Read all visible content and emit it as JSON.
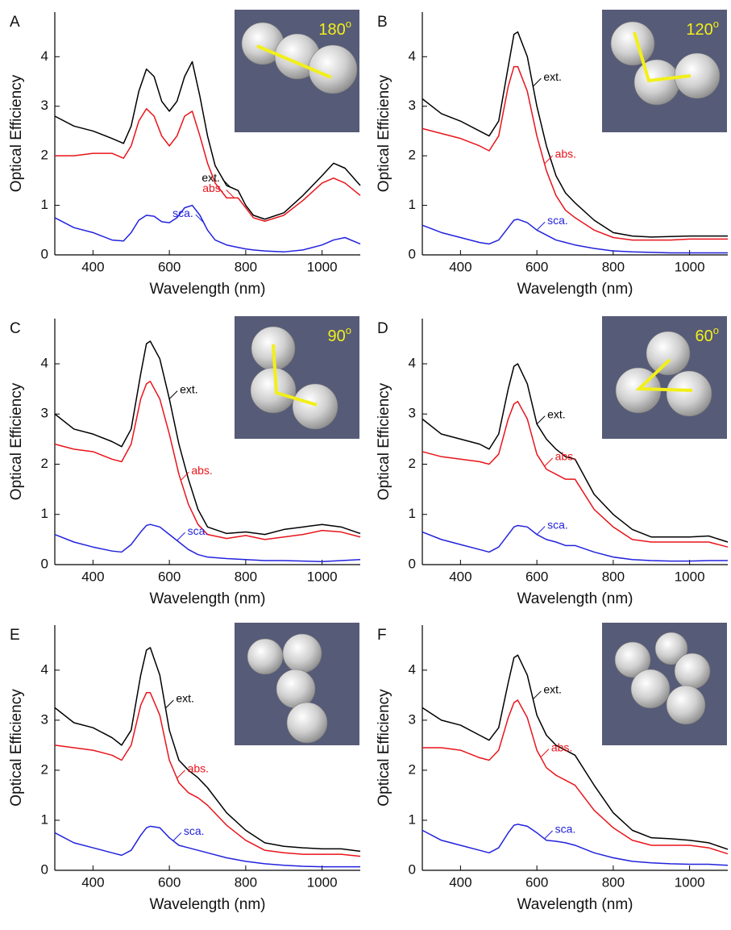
{
  "chart_data": [
    {
      "type": "line",
      "panel": "A",
      "inset_label": "180",
      "inset_label_sup": "o",
      "x_label": "Wavelength (nm)",
      "y_label": "Optical Efficiency",
      "xlim": [
        300,
        1100
      ],
      "ylim": [
        0,
        4.9
      ],
      "xticks": [
        400,
        600,
        800,
        1000
      ],
      "yticks": [
        0,
        1,
        2,
        3,
        4
      ],
      "x": [
        300,
        350,
        400,
        450,
        480,
        500,
        520,
        540,
        560,
        580,
        600,
        620,
        640,
        660,
        680,
        700,
        720,
        750,
        780,
        800,
        820,
        850,
        900,
        950,
        1000,
        1030,
        1060,
        1100
      ],
      "series": [
        {
          "name": "ext.",
          "color": "#000000",
          "values": [
            2.8,
            2.6,
            2.5,
            2.35,
            2.25,
            2.6,
            3.3,
            3.75,
            3.6,
            3.1,
            2.9,
            3.1,
            3.6,
            3.9,
            3.2,
            2.4,
            1.8,
            1.4,
            1.3,
            1.0,
            0.8,
            0.72,
            0.85,
            1.2,
            1.6,
            1.85,
            1.75,
            1.4
          ]
        },
        {
          "name": "abs.",
          "color": "#e8141b",
          "values": [
            2.0,
            2.0,
            2.05,
            2.05,
            1.95,
            2.2,
            2.7,
            2.95,
            2.8,
            2.4,
            2.2,
            2.4,
            2.8,
            2.9,
            2.4,
            1.85,
            1.45,
            1.15,
            1.15,
            0.95,
            0.75,
            0.68,
            0.8,
            1.1,
            1.45,
            1.55,
            1.45,
            1.2
          ]
        },
        {
          "name": "sca.",
          "color": "#2222dd",
          "values": [
            0.75,
            0.55,
            0.45,
            0.3,
            0.28,
            0.45,
            0.7,
            0.8,
            0.78,
            0.67,
            0.65,
            0.75,
            0.95,
            1.0,
            0.8,
            0.5,
            0.3,
            0.2,
            0.15,
            0.12,
            0.1,
            0.08,
            0.06,
            0.1,
            0.2,
            0.3,
            0.35,
            0.22
          ]
        }
      ]
    },
    {
      "type": "line",
      "panel": "B",
      "inset_label": "120",
      "inset_label_sup": "o",
      "x_label": "Wavelength (nm)",
      "y_label": "Optical Efficiency",
      "xlim": [
        300,
        1100
      ],
      "ylim": [
        0,
        4.9
      ],
      "xticks": [
        400,
        600,
        800,
        1000
      ],
      "yticks": [
        0,
        1,
        2,
        3,
        4
      ],
      "x": [
        300,
        350,
        400,
        450,
        475,
        500,
        525,
        540,
        550,
        575,
        600,
        625,
        650,
        675,
        700,
        750,
        800,
        850,
        900,
        950,
        1000,
        1050,
        1100
      ],
      "series": [
        {
          "name": "ext.",
          "color": "#000000",
          "values": [
            3.15,
            2.85,
            2.7,
            2.5,
            2.4,
            2.7,
            3.8,
            4.45,
            4.5,
            4.0,
            3.0,
            2.2,
            1.6,
            1.25,
            1.05,
            0.7,
            0.45,
            0.38,
            0.36,
            0.37,
            0.38,
            0.38,
            0.38
          ]
        },
        {
          "name": "abs.",
          "color": "#e8141b",
          "values": [
            2.55,
            2.45,
            2.35,
            2.2,
            2.1,
            2.4,
            3.4,
            3.8,
            3.8,
            3.3,
            2.4,
            1.7,
            1.2,
            0.9,
            0.75,
            0.5,
            0.35,
            0.3,
            0.3,
            0.3,
            0.32,
            0.32,
            0.32
          ]
        },
        {
          "name": "sca.",
          "color": "#2222dd",
          "values": [
            0.6,
            0.45,
            0.35,
            0.25,
            0.22,
            0.3,
            0.55,
            0.7,
            0.72,
            0.65,
            0.5,
            0.4,
            0.3,
            0.25,
            0.2,
            0.13,
            0.08,
            0.06,
            0.05,
            0.04,
            0.04,
            0.04,
            0.04
          ]
        }
      ]
    },
    {
      "type": "line",
      "panel": "C",
      "inset_label": "90",
      "inset_label_sup": "o",
      "x_label": "Wavelength (nm)",
      "y_label": "Optical Efficiency",
      "xlim": [
        300,
        1100
      ],
      "ylim": [
        0,
        4.9
      ],
      "xticks": [
        400,
        600,
        800,
        1000
      ],
      "yticks": [
        0,
        1,
        2,
        3,
        4
      ],
      "x": [
        300,
        350,
        400,
        450,
        475,
        500,
        525,
        540,
        550,
        575,
        600,
        625,
        650,
        675,
        700,
        750,
        800,
        850,
        900,
        950,
        1000,
        1050,
        1100
      ],
      "series": [
        {
          "name": "ext.",
          "color": "#000000",
          "values": [
            3.0,
            2.7,
            2.6,
            2.45,
            2.35,
            2.7,
            3.8,
            4.4,
            4.45,
            4.1,
            3.3,
            2.4,
            1.7,
            1.1,
            0.75,
            0.62,
            0.65,
            0.6,
            0.7,
            0.75,
            0.8,
            0.75,
            0.62
          ]
        },
        {
          "name": "abs.",
          "color": "#e8141b",
          "values": [
            2.4,
            2.3,
            2.25,
            2.1,
            2.05,
            2.4,
            3.3,
            3.6,
            3.65,
            3.3,
            2.6,
            1.8,
            1.2,
            0.8,
            0.6,
            0.52,
            0.58,
            0.5,
            0.55,
            0.6,
            0.68,
            0.65,
            0.55
          ]
        },
        {
          "name": "sca.",
          "color": "#2222dd",
          "values": [
            0.6,
            0.45,
            0.35,
            0.27,
            0.25,
            0.4,
            0.65,
            0.78,
            0.8,
            0.75,
            0.6,
            0.45,
            0.3,
            0.2,
            0.15,
            0.12,
            0.1,
            0.08,
            0.08,
            0.07,
            0.06,
            0.08,
            0.1
          ]
        }
      ]
    },
    {
      "type": "line",
      "panel": "D",
      "inset_label": "60",
      "inset_label_sup": "o",
      "x_label": "Wavelength (nm)",
      "y_label": "Optical Efficiency",
      "xlim": [
        300,
        1100
      ],
      "ylim": [
        0,
        4.9
      ],
      "xticks": [
        400,
        600,
        800,
        1000
      ],
      "yticks": [
        0,
        1,
        2,
        3,
        4
      ],
      "x": [
        300,
        350,
        400,
        450,
        475,
        500,
        525,
        540,
        550,
        575,
        600,
        625,
        650,
        675,
        700,
        750,
        800,
        850,
        900,
        950,
        1000,
        1050,
        1100
      ],
      "series": [
        {
          "name": "ext.",
          "color": "#000000",
          "values": [
            2.9,
            2.6,
            2.5,
            2.4,
            2.3,
            2.6,
            3.5,
            3.95,
            4.0,
            3.6,
            2.8,
            2.5,
            2.3,
            2.15,
            2.1,
            1.4,
            1.0,
            0.7,
            0.55,
            0.55,
            0.55,
            0.57,
            0.45
          ]
        },
        {
          "name": "abs.",
          "color": "#e8141b",
          "values": [
            2.25,
            2.15,
            2.1,
            2.05,
            2.0,
            2.2,
            2.9,
            3.2,
            3.25,
            2.9,
            2.2,
            1.9,
            1.8,
            1.7,
            1.7,
            1.1,
            0.75,
            0.5,
            0.45,
            0.45,
            0.45,
            0.45,
            0.35
          ]
        },
        {
          "name": "sca.",
          "color": "#2222dd",
          "values": [
            0.65,
            0.5,
            0.4,
            0.3,
            0.25,
            0.35,
            0.6,
            0.75,
            0.78,
            0.75,
            0.6,
            0.5,
            0.45,
            0.38,
            0.38,
            0.25,
            0.15,
            0.1,
            0.08,
            0.07,
            0.07,
            0.08,
            0.08
          ]
        }
      ]
    },
    {
      "type": "line",
      "panel": "E",
      "x_label": "Wavelength (nm)",
      "y_label": "Optical Efficiency",
      "xlim": [
        300,
        1100
      ],
      "ylim": [
        0,
        4.9
      ],
      "xticks": [
        400,
        600,
        800,
        1000
      ],
      "yticks": [
        0,
        1,
        2,
        3,
        4
      ],
      "x": [
        300,
        350,
        400,
        450,
        475,
        500,
        525,
        540,
        550,
        575,
        600,
        625,
        650,
        675,
        700,
        750,
        800,
        850,
        900,
        950,
        1000,
        1050,
        1100
      ],
      "series": [
        {
          "name": "ext.",
          "color": "#000000",
          "values": [
            3.25,
            2.95,
            2.85,
            2.65,
            2.5,
            2.8,
            3.9,
            4.4,
            4.45,
            3.9,
            2.8,
            2.2,
            2.0,
            1.85,
            1.65,
            1.15,
            0.8,
            0.55,
            0.48,
            0.45,
            0.43,
            0.43,
            0.38
          ]
        },
        {
          "name": "abs.",
          "color": "#e8141b",
          "values": [
            2.5,
            2.45,
            2.4,
            2.3,
            2.2,
            2.5,
            3.3,
            3.55,
            3.55,
            3.1,
            2.2,
            1.75,
            1.55,
            1.45,
            1.3,
            0.9,
            0.6,
            0.4,
            0.35,
            0.32,
            0.32,
            0.32,
            0.28
          ]
        },
        {
          "name": "sca.",
          "color": "#2222dd",
          "values": [
            0.75,
            0.55,
            0.45,
            0.35,
            0.3,
            0.4,
            0.7,
            0.85,
            0.88,
            0.85,
            0.65,
            0.5,
            0.45,
            0.4,
            0.35,
            0.25,
            0.18,
            0.13,
            0.1,
            0.08,
            0.07,
            0.07,
            0.07
          ]
        }
      ]
    },
    {
      "type": "line",
      "panel": "F",
      "x_label": "Wavelength (nm)",
      "y_label": "Optical Efficiency",
      "xlim": [
        300,
        1100
      ],
      "ylim": [
        0,
        4.9
      ],
      "xticks": [
        400,
        600,
        800,
        1000
      ],
      "yticks": [
        0,
        1,
        2,
        3,
        4
      ],
      "x": [
        300,
        350,
        400,
        450,
        475,
        500,
        525,
        540,
        550,
        575,
        600,
        625,
        650,
        675,
        700,
        750,
        800,
        850,
        900,
        950,
        1000,
        1050,
        1100
      ],
      "series": [
        {
          "name": "ext.",
          "color": "#000000",
          "values": [
            3.25,
            3.0,
            2.9,
            2.7,
            2.6,
            2.85,
            3.75,
            4.25,
            4.3,
            3.9,
            3.1,
            2.7,
            2.5,
            2.4,
            2.3,
            1.7,
            1.15,
            0.8,
            0.65,
            0.63,
            0.6,
            0.55,
            0.42
          ]
        },
        {
          "name": "abs.",
          "color": "#e8141b",
          "values": [
            2.45,
            2.45,
            2.4,
            2.25,
            2.2,
            2.4,
            3.05,
            3.35,
            3.4,
            3.05,
            2.4,
            2.05,
            1.9,
            1.8,
            1.7,
            1.2,
            0.85,
            0.6,
            0.5,
            0.5,
            0.5,
            0.45,
            0.33
          ]
        },
        {
          "name": "sca.",
          "color": "#2222dd",
          "values": [
            0.8,
            0.6,
            0.5,
            0.4,
            0.35,
            0.45,
            0.75,
            0.9,
            0.92,
            0.88,
            0.75,
            0.6,
            0.58,
            0.55,
            0.5,
            0.35,
            0.25,
            0.18,
            0.15,
            0.13,
            0.12,
            0.12,
            0.1
          ]
        }
      ]
    }
  ]
}
